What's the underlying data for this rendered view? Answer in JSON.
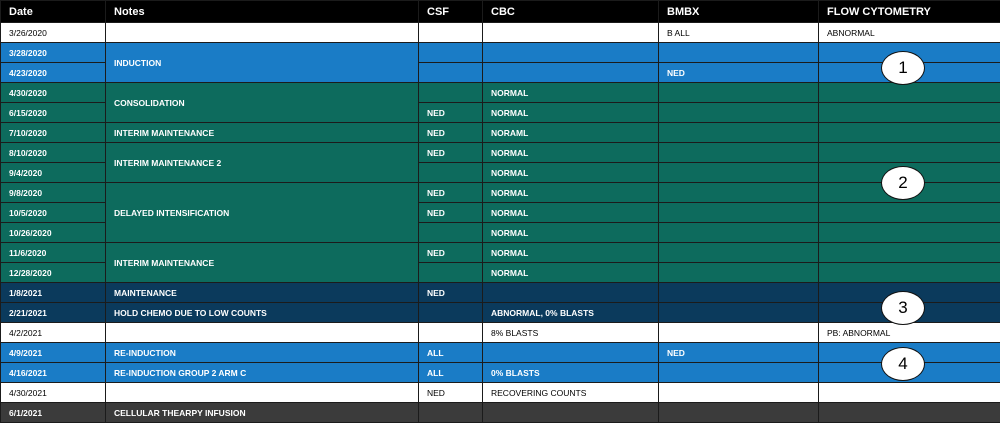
{
  "header": {
    "columns": [
      "Date",
      "Notes",
      "CSF",
      "CBC",
      "BMBX",
      "FLOW CYTOMETRY"
    ]
  },
  "rows": [
    {
      "date": "3/26/2020",
      "bmbx": "B ALL",
      "flow": "ABNORMAL"
    },
    {
      "date": "3/28/2020",
      "notes": "INDUCTION"
    },
    {
      "date": "4/23/2020",
      "bmbx": "NED"
    },
    {
      "date": "4/30/2020",
      "notes": "CONSOLIDATION",
      "cbc": "NORMAL"
    },
    {
      "date": "6/15/2020",
      "csf": "NED",
      "cbc": "NORMAL"
    },
    {
      "date": "7/10/2020",
      "notes": "INTERIM MAINTENANCE",
      "csf": "NED",
      "cbc": "NORAML"
    },
    {
      "date": "8/10/2020",
      "notes": "INTERIM MAINTENANCE 2",
      "csf": "NED",
      "cbc": "NORMAL"
    },
    {
      "date": "9/4/2020",
      "cbc": "NORMAL"
    },
    {
      "date": "9/8/2020",
      "notes": "DELAYED INTENSIFICATION",
      "csf": "NED",
      "cbc": "NORMAL"
    },
    {
      "date": "10/5/2020",
      "csf": "NED",
      "cbc": "NORMAL"
    },
    {
      "date": "10/26/2020",
      "cbc": "NORMAL"
    },
    {
      "date": "11/6/2020",
      "notes": "INTERIM MAINTENANCE",
      "csf": "NED",
      "cbc": "NORMAL"
    },
    {
      "date": "12/28/2020",
      "cbc": "NORMAL"
    },
    {
      "date": "1/8/2021",
      "notes": "MAINTENANCE",
      "csf": "NED"
    },
    {
      "date": "2/21/2021",
      "notes": "HOLD CHEMO DUE TO LOW COUNTS",
      "cbc": "ABNORMAL, 0% BLASTS"
    },
    {
      "date": "4/2/2021",
      "cbc": "8% BLASTS",
      "flow": "PB: ABNORMAL"
    },
    {
      "date": "4/9/2021",
      "notes": "RE-INDUCTION",
      "csf": "ALL",
      "bmbx": "NED"
    },
    {
      "date": "4/16/2021",
      "notes": "RE-INDUCTION GROUP 2 ARM C",
      "csf": "ALL",
      "cbc": "0% BLASTS"
    },
    {
      "date": "4/30/2021",
      "csf": "NED",
      "cbc": "RECOVERING COUNTS"
    },
    {
      "date": "6/1/2021",
      "notes": "CELLULAR THEARPY INFUSION"
    }
  ],
  "annotations": [
    "1",
    "2",
    "3",
    "4"
  ]
}
